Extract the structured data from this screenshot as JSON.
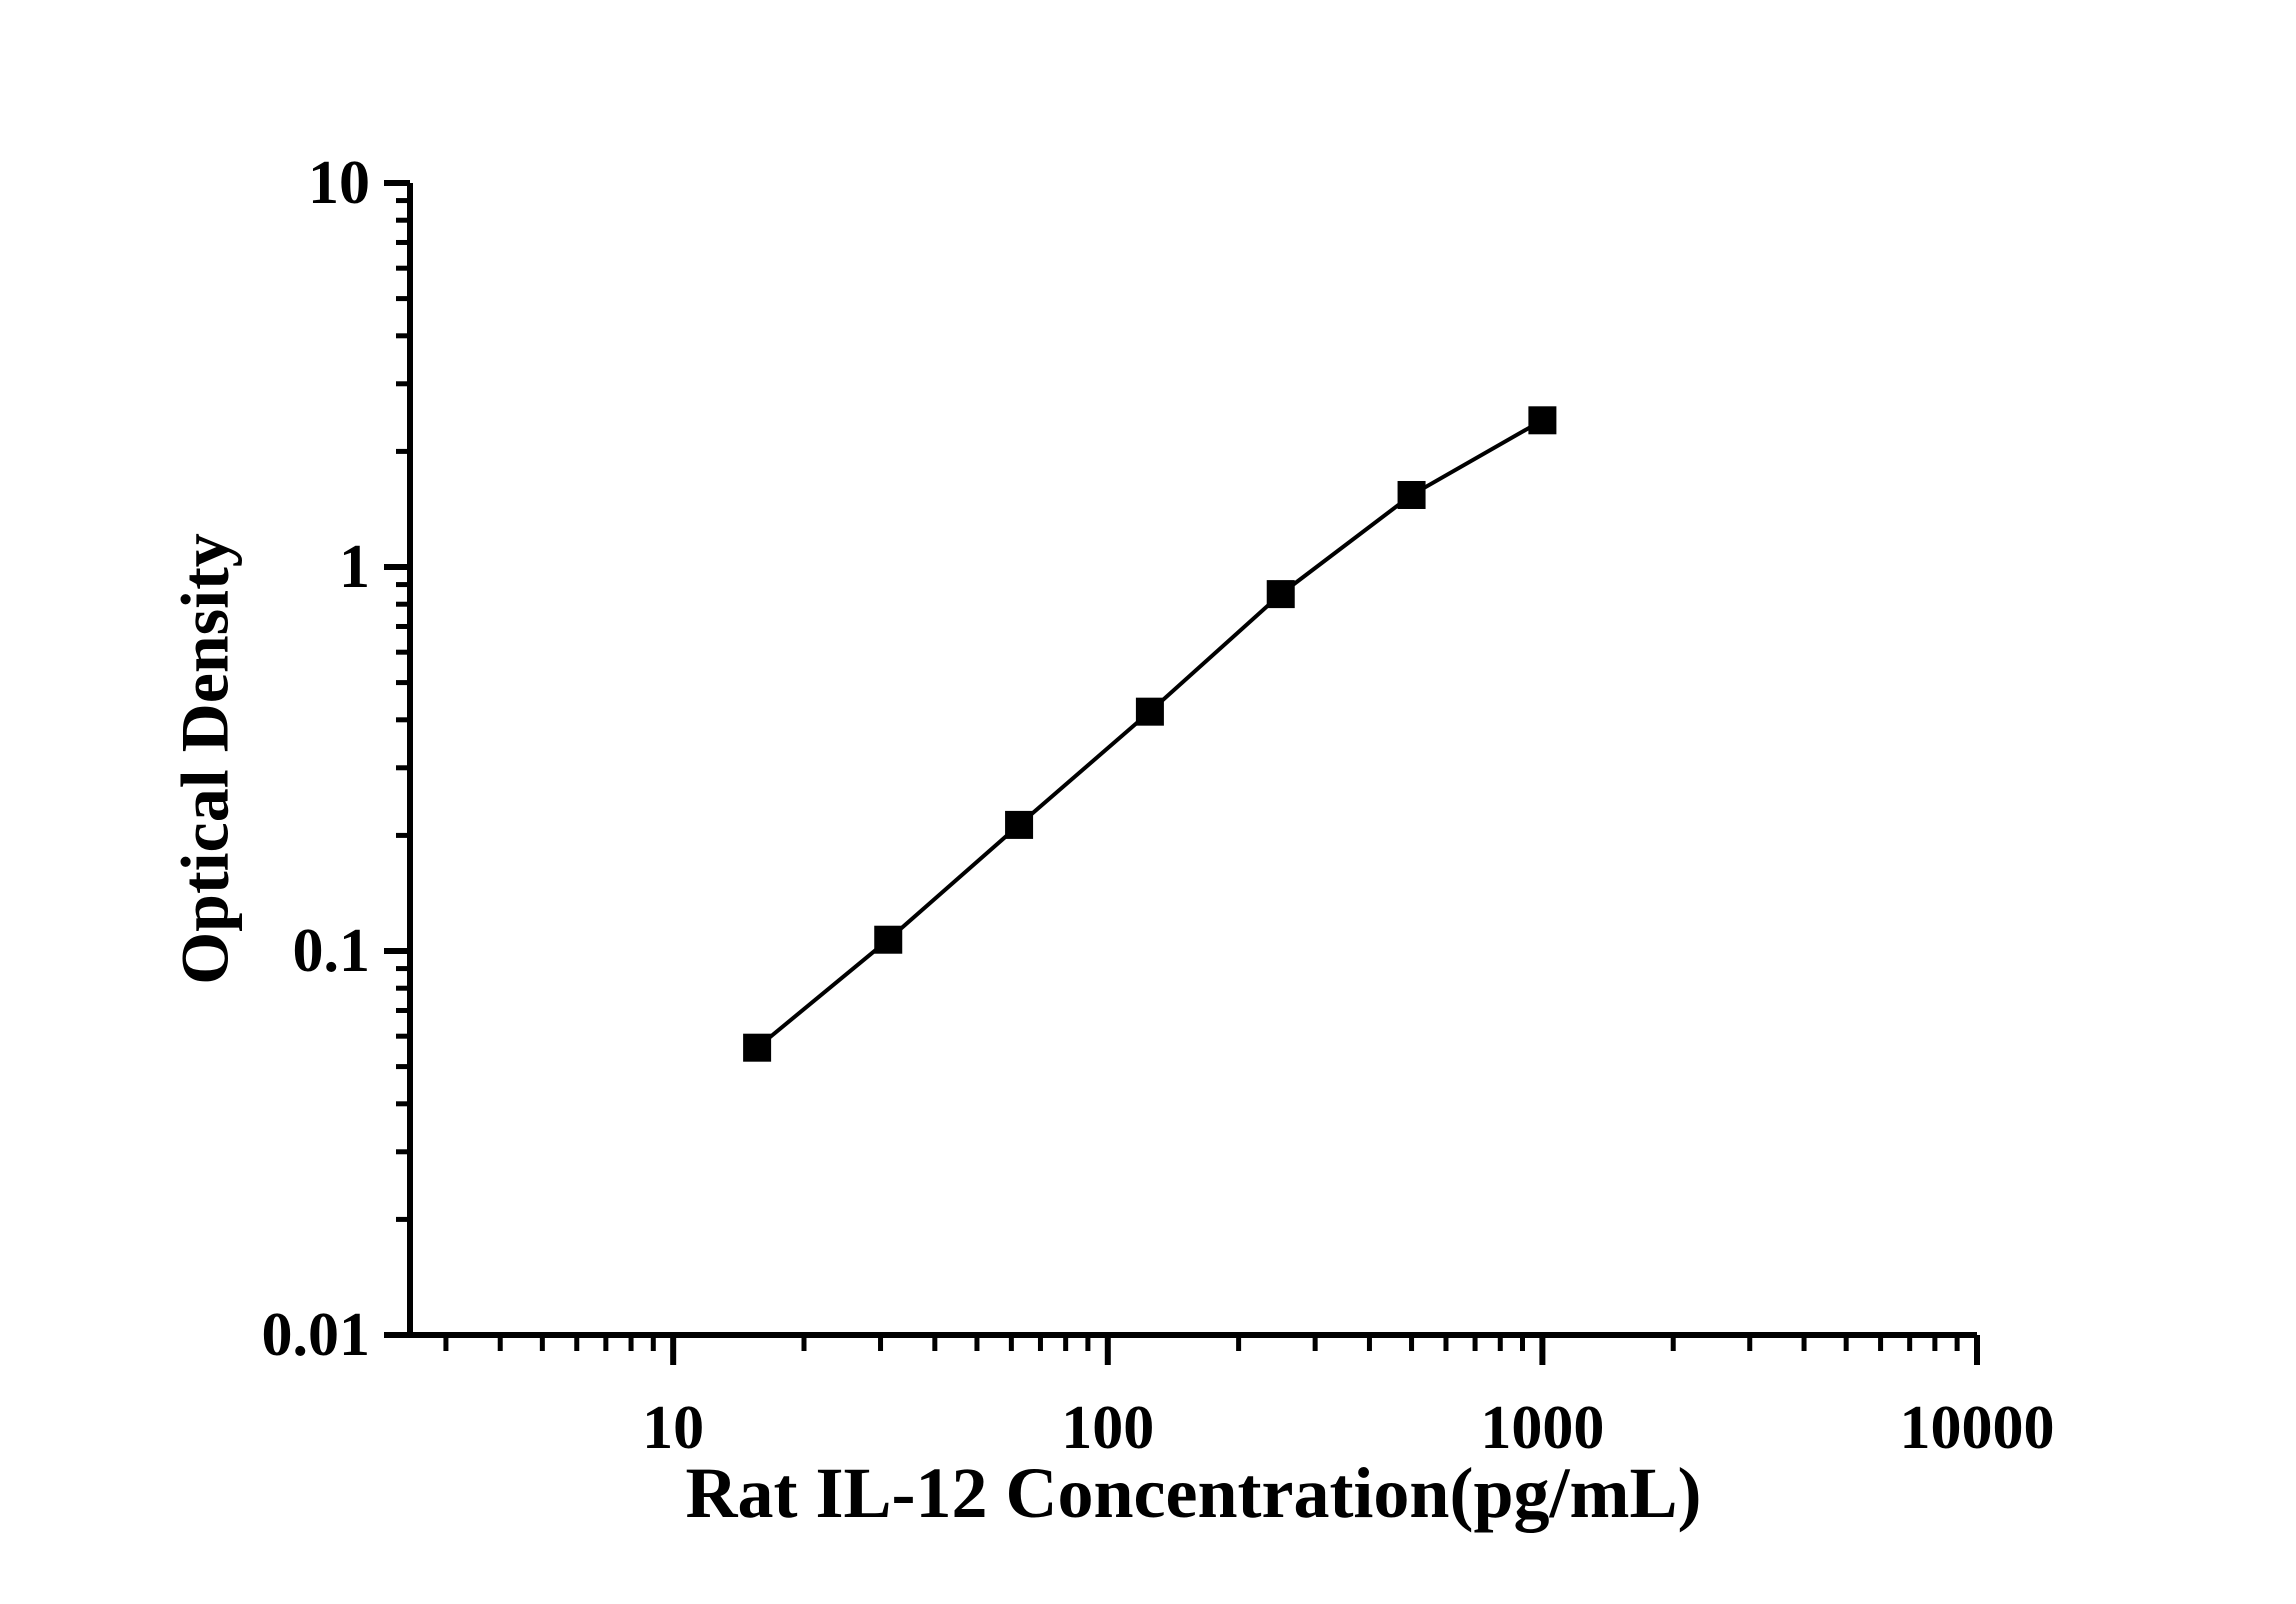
{
  "chart_data": {
    "type": "line",
    "title": "",
    "xlabel": "Rat IL-12 Concentration(pg/mL)",
    "ylabel": "Optical Density",
    "x_scale": "log",
    "y_scale": "log",
    "xlim": [
      2.48,
      10000
    ],
    "ylim": [
      0.01,
      10
    ],
    "grid": false,
    "legend": false,
    "series": [
      {
        "name": "standard-curve",
        "marker": "square",
        "x": [
          15.6,
          31.25,
          62.5,
          125,
          250,
          500,
          1000
        ],
        "y": [
          0.056,
          0.107,
          0.213,
          0.42,
          0.85,
          1.54,
          2.41
        ]
      }
    ],
    "x_ticks": [
      10,
      100,
      1000,
      10000
    ],
    "x_tick_labels": [
      "10",
      "100",
      "1000",
      "10000"
    ],
    "y_ticks": [
      0.01,
      0.1,
      1,
      10
    ],
    "y_tick_labels": [
      "0.01",
      "0.1",
      "1",
      "10"
    ],
    "colors": {
      "axis": "#000000",
      "line": "#000000",
      "marker": "#000000",
      "text": "#000000",
      "background": "#ffffff"
    }
  }
}
